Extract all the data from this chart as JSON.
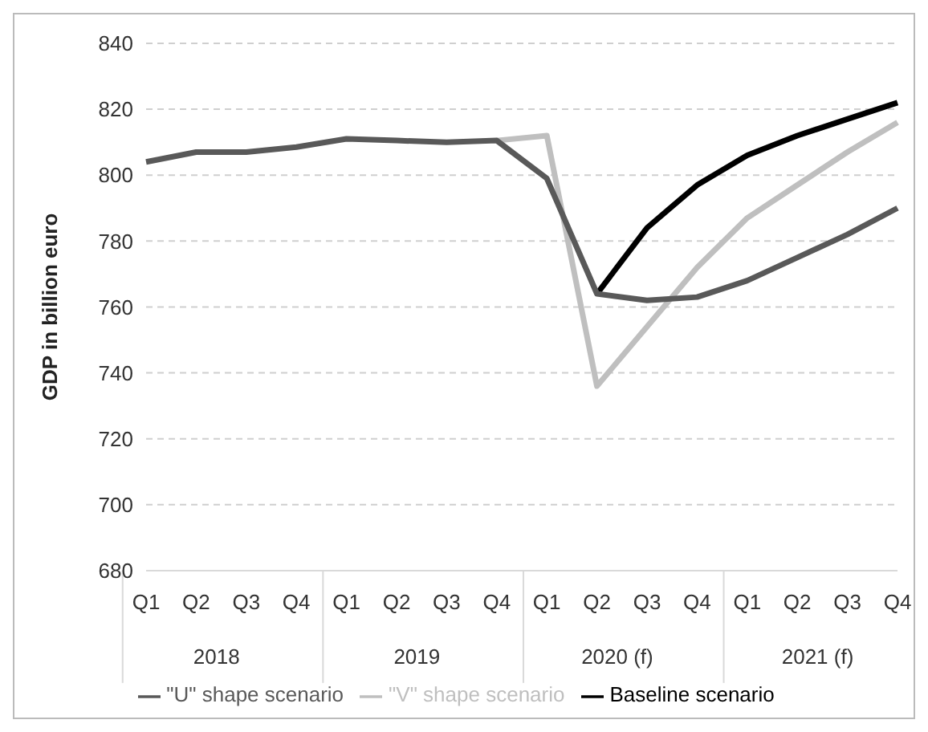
{
  "chart_data": {
    "type": "line",
    "ylabel": "GDP in billion euro",
    "categories": [
      "Q1",
      "Q2",
      "Q3",
      "Q4",
      "Q1",
      "Q2",
      "Q3",
      "Q4",
      "Q1",
      "Q2",
      "Q3",
      "Q4",
      "Q1",
      "Q2",
      "Q3",
      "Q4"
    ],
    "annotations": [
      "2018",
      "2019",
      "2020 (f)",
      "2021 (f)"
    ],
    "series": [
      {
        "name": "Baseline scenario",
        "color": "#000000",
        "values": [
          null,
          null,
          null,
          null,
          null,
          null,
          null,
          null,
          null,
          764,
          784,
          797,
          806,
          812,
          817,
          822
        ]
      },
      {
        "name": "\"V\" shape scenario",
        "color": "#bfbfbf",
        "values": [
          null,
          null,
          null,
          null,
          null,
          null,
          null,
          810.5,
          812,
          736,
          754,
          772,
          787,
          797,
          807,
          816
        ]
      },
      {
        "name": "\"U\" shape scenario",
        "color": "#595959",
        "values": [
          804,
          807,
          807,
          808.5,
          811,
          810.5,
          810,
          810.5,
          799,
          764,
          762,
          763,
          768,
          775,
          782,
          790
        ]
      }
    ],
    "ylim": [
      680,
      840
    ],
    "yticks": [
      680,
      700,
      720,
      740,
      760,
      780,
      800,
      820,
      840
    ],
    "grid": "y",
    "legend": "bottom",
    "marker": "none",
    "line_style": "solid"
  }
}
